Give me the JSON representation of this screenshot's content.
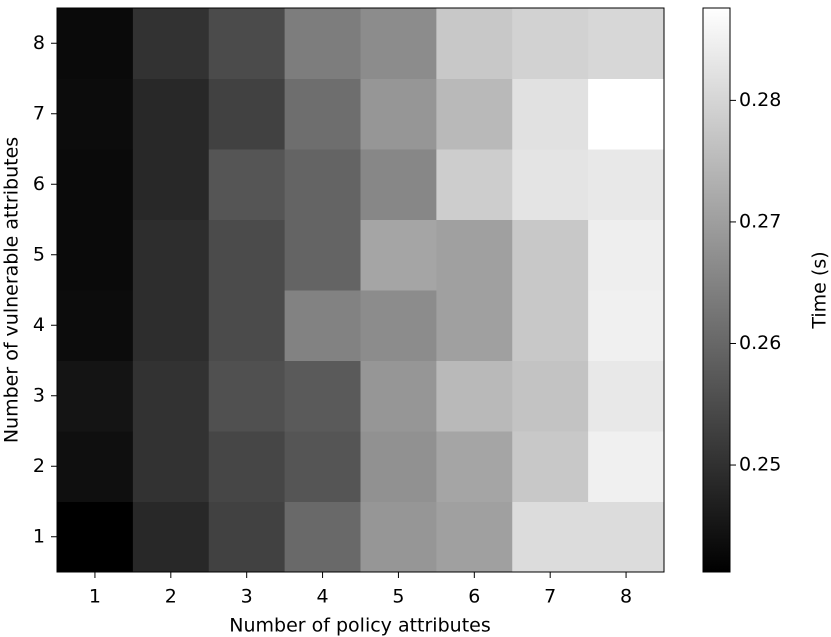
{
  "chart_data": {
    "type": "heatmap",
    "x_label": "Number of policy attributes",
    "y_label": "Number of vulnerable attributes",
    "colorbar_label": "Time (s)",
    "colormap": "gray",
    "x": [
      1,
      2,
      3,
      4,
      5,
      6,
      7,
      8
    ],
    "y": [
      1,
      2,
      3,
      4,
      5,
      6,
      7,
      8
    ],
    "z": [
      [
        0.2412,
        0.2485,
        0.253,
        0.2603,
        0.2685,
        0.2703,
        0.2812,
        0.2812
      ],
      [
        0.2439,
        0.2503,
        0.2539,
        0.2567,
        0.2676,
        0.2712,
        0.2776,
        0.2849
      ],
      [
        0.2448,
        0.2503,
        0.2558,
        0.2576,
        0.2685,
        0.2749,
        0.2767,
        0.2834
      ],
      [
        0.2434,
        0.2494,
        0.2549,
        0.2649,
        0.2667,
        0.2703,
        0.2776,
        0.2849
      ],
      [
        0.243,
        0.2494,
        0.2549,
        0.2594,
        0.2712,
        0.2703,
        0.2776,
        0.2845
      ],
      [
        0.243,
        0.2485,
        0.2567,
        0.2594,
        0.2658,
        0.2785,
        0.2827,
        0.2834
      ],
      [
        0.2434,
        0.2485,
        0.253,
        0.2612,
        0.2685,
        0.2749,
        0.2822,
        0.2876
      ],
      [
        0.243,
        0.2503,
        0.2549,
        0.264,
        0.2667,
        0.2776,
        0.2794,
        0.2803
      ]
    ],
    "clim": [
      0.2412,
      0.2876
    ],
    "cticks": [
      0.25,
      0.26,
      0.27,
      0.28
    ]
  }
}
